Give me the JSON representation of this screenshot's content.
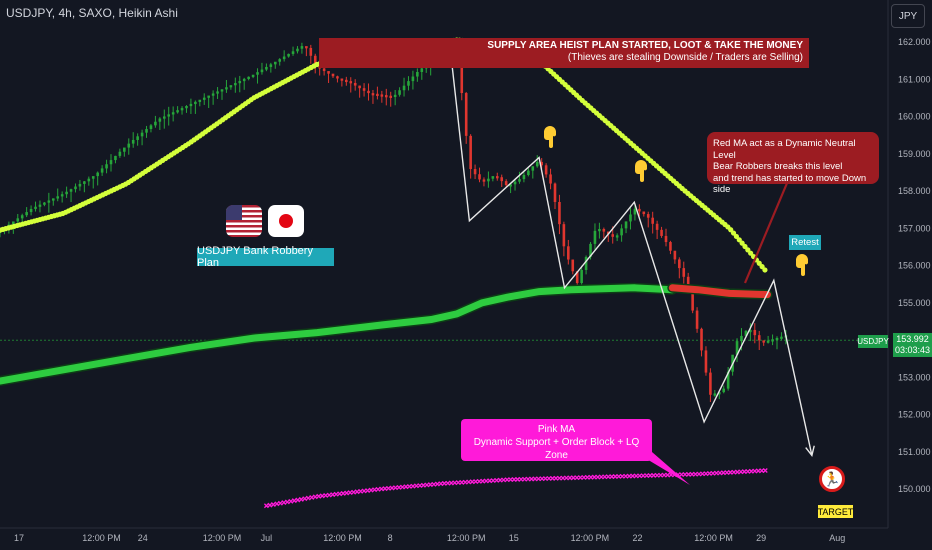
{
  "header": {
    "title": "USDJPY, 4h, SAXO, Heikin Ashi"
  },
  "currency_button": {
    "label": "JPY"
  },
  "icons": [
    "us-flag-icon",
    "japan-flag-icon",
    "pointing-hand-icon",
    "runner-exit-icon"
  ],
  "colors": {
    "background": "#131722",
    "candle_up": "#26a63a",
    "candle_down": "#e0362f",
    "yellow_ma": "#d4ff3b",
    "green_ma": "#2ecc40",
    "red_ma": "#e0362f",
    "pink_ma": "#ff1ad9",
    "path_line": "#e8e8e8",
    "supply_box": "#9c1c22",
    "label_teal": "#1fa8b8"
  },
  "annotations": {
    "plan_label": "USDJPY Bank Robbery Plan",
    "supply_line1": "SUPPLY AREA HEIST PLAN STARTED, LOOT & TAKE THE MONEY",
    "supply_line2": "(Thieves are stealing Downside / Traders are Selling)",
    "red_ma_line1": "Red MA act as a Dynamic Neutral Level",
    "red_ma_line2": "Bear Robbers breaks this level",
    "red_ma_line3": "and trend has started to move Down side",
    "pink_line1": "Pink MA",
    "pink_line2": "Dynamic Support + Order Block + LQ Zone",
    "retest": "Retest",
    "target": "TARGET"
  },
  "price_label": {
    "symbol": "USDJPY",
    "price": "153.992",
    "countdown": "03:03:43"
  },
  "chart_data": {
    "type": "line",
    "title": "USDJPY, 4h, SAXO, Heikin Ashi",
    "xlabel": "",
    "ylabel": "",
    "x_range": [
      0,
      140
    ],
    "ylim": [
      149.6,
      162.4
    ],
    "y_ticks": [
      150.0,
      151.0,
      152.0,
      153.0,
      154.0,
      155.0,
      156.0,
      157.0,
      158.0,
      159.0,
      160.0,
      161.0,
      162.0
    ],
    "x_ticks": [
      {
        "x": 3,
        "label": "17"
      },
      {
        "x": 16,
        "label": "12:00 PM"
      },
      {
        "x": 22.5,
        "label": "24"
      },
      {
        "x": 35,
        "label": "12:00 PM"
      },
      {
        "x": 42,
        "label": "Jul"
      },
      {
        "x": 54,
        "label": "12:00 PM"
      },
      {
        "x": 61.5,
        "label": "8"
      },
      {
        "x": 73.5,
        "label": "12:00 PM"
      },
      {
        "x": 81,
        "label": "15"
      },
      {
        "x": 93,
        "label": "12:00 PM"
      },
      {
        "x": 100.5,
        "label": "22"
      },
      {
        "x": 112.5,
        "label": "12:00 PM"
      },
      {
        "x": 120,
        "label": "29"
      },
      {
        "x": 132,
        "label": "Aug"
      }
    ],
    "grid": false,
    "last_price": 153.992,
    "price_anchors": [
      [
        0,
        156.9
      ],
      [
        5,
        157.5
      ],
      [
        10,
        157.9
      ],
      [
        15,
        158.4
      ],
      [
        20,
        159.2
      ],
      [
        25,
        159.9
      ],
      [
        30,
        160.3
      ],
      [
        35,
        160.7
      ],
      [
        40,
        161.1
      ],
      [
        45,
        161.6
      ],
      [
        48,
        161.9
      ],
      [
        50,
        161.3
      ],
      [
        53,
        161.0
      ],
      [
        55,
        160.9
      ],
      [
        58,
        160.6
      ],
      [
        62,
        160.5
      ],
      [
        66,
        161.2
      ],
      [
        70,
        161.7
      ],
      [
        72,
        161.8
      ],
      [
        73,
        160.3
      ],
      [
        74,
        158.6
      ],
      [
        76,
        158.2
      ],
      [
        78,
        158.4
      ],
      [
        80,
        158.1
      ],
      [
        82,
        158.3
      ],
      [
        85,
        158.8
      ],
      [
        87,
        158.1
      ],
      [
        89,
        156.4
      ],
      [
        91,
        155.5
      ],
      [
        94,
        157.0
      ],
      [
        97,
        156.7
      ],
      [
        100,
        157.5
      ],
      [
        102,
        157.3
      ],
      [
        105,
        156.6
      ],
      [
        108,
        155.6
      ],
      [
        110,
        154.2
      ],
      [
        112,
        152.5
      ],
      [
        114,
        152.6
      ],
      [
        116,
        153.9
      ],
      [
        118,
        154.3
      ],
      [
        120,
        153.9
      ],
      [
        122,
        154.0
      ],
      [
        124,
        154.1
      ]
    ],
    "series": [
      {
        "name": "",
        "role": "yellow-ma",
        "values": [
          [
            0,
            156.95
          ],
          [
            10,
            157.4
          ],
          [
            20,
            158.2
          ],
          [
            30,
            159.3
          ],
          [
            40,
            160.5
          ],
          [
            50,
            161.4
          ],
          [
            58,
            161.75
          ],
          [
            66,
            161.95
          ],
          [
            72,
            162.05
          ],
          [
            78,
            162.0
          ],
          [
            85,
            161.5
          ],
          [
            92,
            160.4
          ],
          [
            100,
            159.2
          ],
          [
            108,
            158.0
          ],
          [
            115,
            157.0
          ],
          [
            121,
            155.8
          ]
        ]
      },
      {
        "name": "",
        "role": "green-ma",
        "values": [
          [
            0,
            152.9
          ],
          [
            10,
            153.2
          ],
          [
            20,
            153.5
          ],
          [
            30,
            153.8
          ],
          [
            40,
            154.05
          ],
          [
            50,
            154.2
          ],
          [
            60,
            154.4
          ],
          [
            68,
            154.55
          ],
          [
            72,
            154.7
          ],
          [
            76,
            155.0
          ],
          [
            80,
            155.15
          ],
          [
            85,
            155.3
          ],
          [
            90,
            155.35
          ],
          [
            100,
            155.4
          ],
          [
            106,
            155.35
          ]
        ]
      },
      {
        "name": "",
        "role": "red-ma",
        "values": [
          [
            106,
            155.4
          ],
          [
            110,
            155.35
          ],
          [
            115,
            155.25
          ],
          [
            121,
            155.22
          ]
        ]
      },
      {
        "name": "",
        "role": "pink-ma",
        "values": [
          [
            42,
            149.55
          ],
          [
            50,
            149.8
          ],
          [
            60,
            150.0
          ],
          [
            70,
            150.15
          ],
          [
            80,
            150.25
          ],
          [
            90,
            150.3
          ],
          [
            100,
            150.35
          ],
          [
            110,
            150.4
          ],
          [
            121,
            150.5
          ]
        ]
      },
      {
        "name": "",
        "role": "path",
        "values": [
          [
            71,
            161.8
          ],
          [
            74,
            157.2
          ],
          [
            85,
            158.9
          ],
          [
            89,
            155.4
          ],
          [
            100,
            157.7
          ],
          [
            111,
            151.8
          ],
          [
            122,
            155.6
          ],
          [
            128,
            150.9
          ]
        ]
      }
    ]
  }
}
